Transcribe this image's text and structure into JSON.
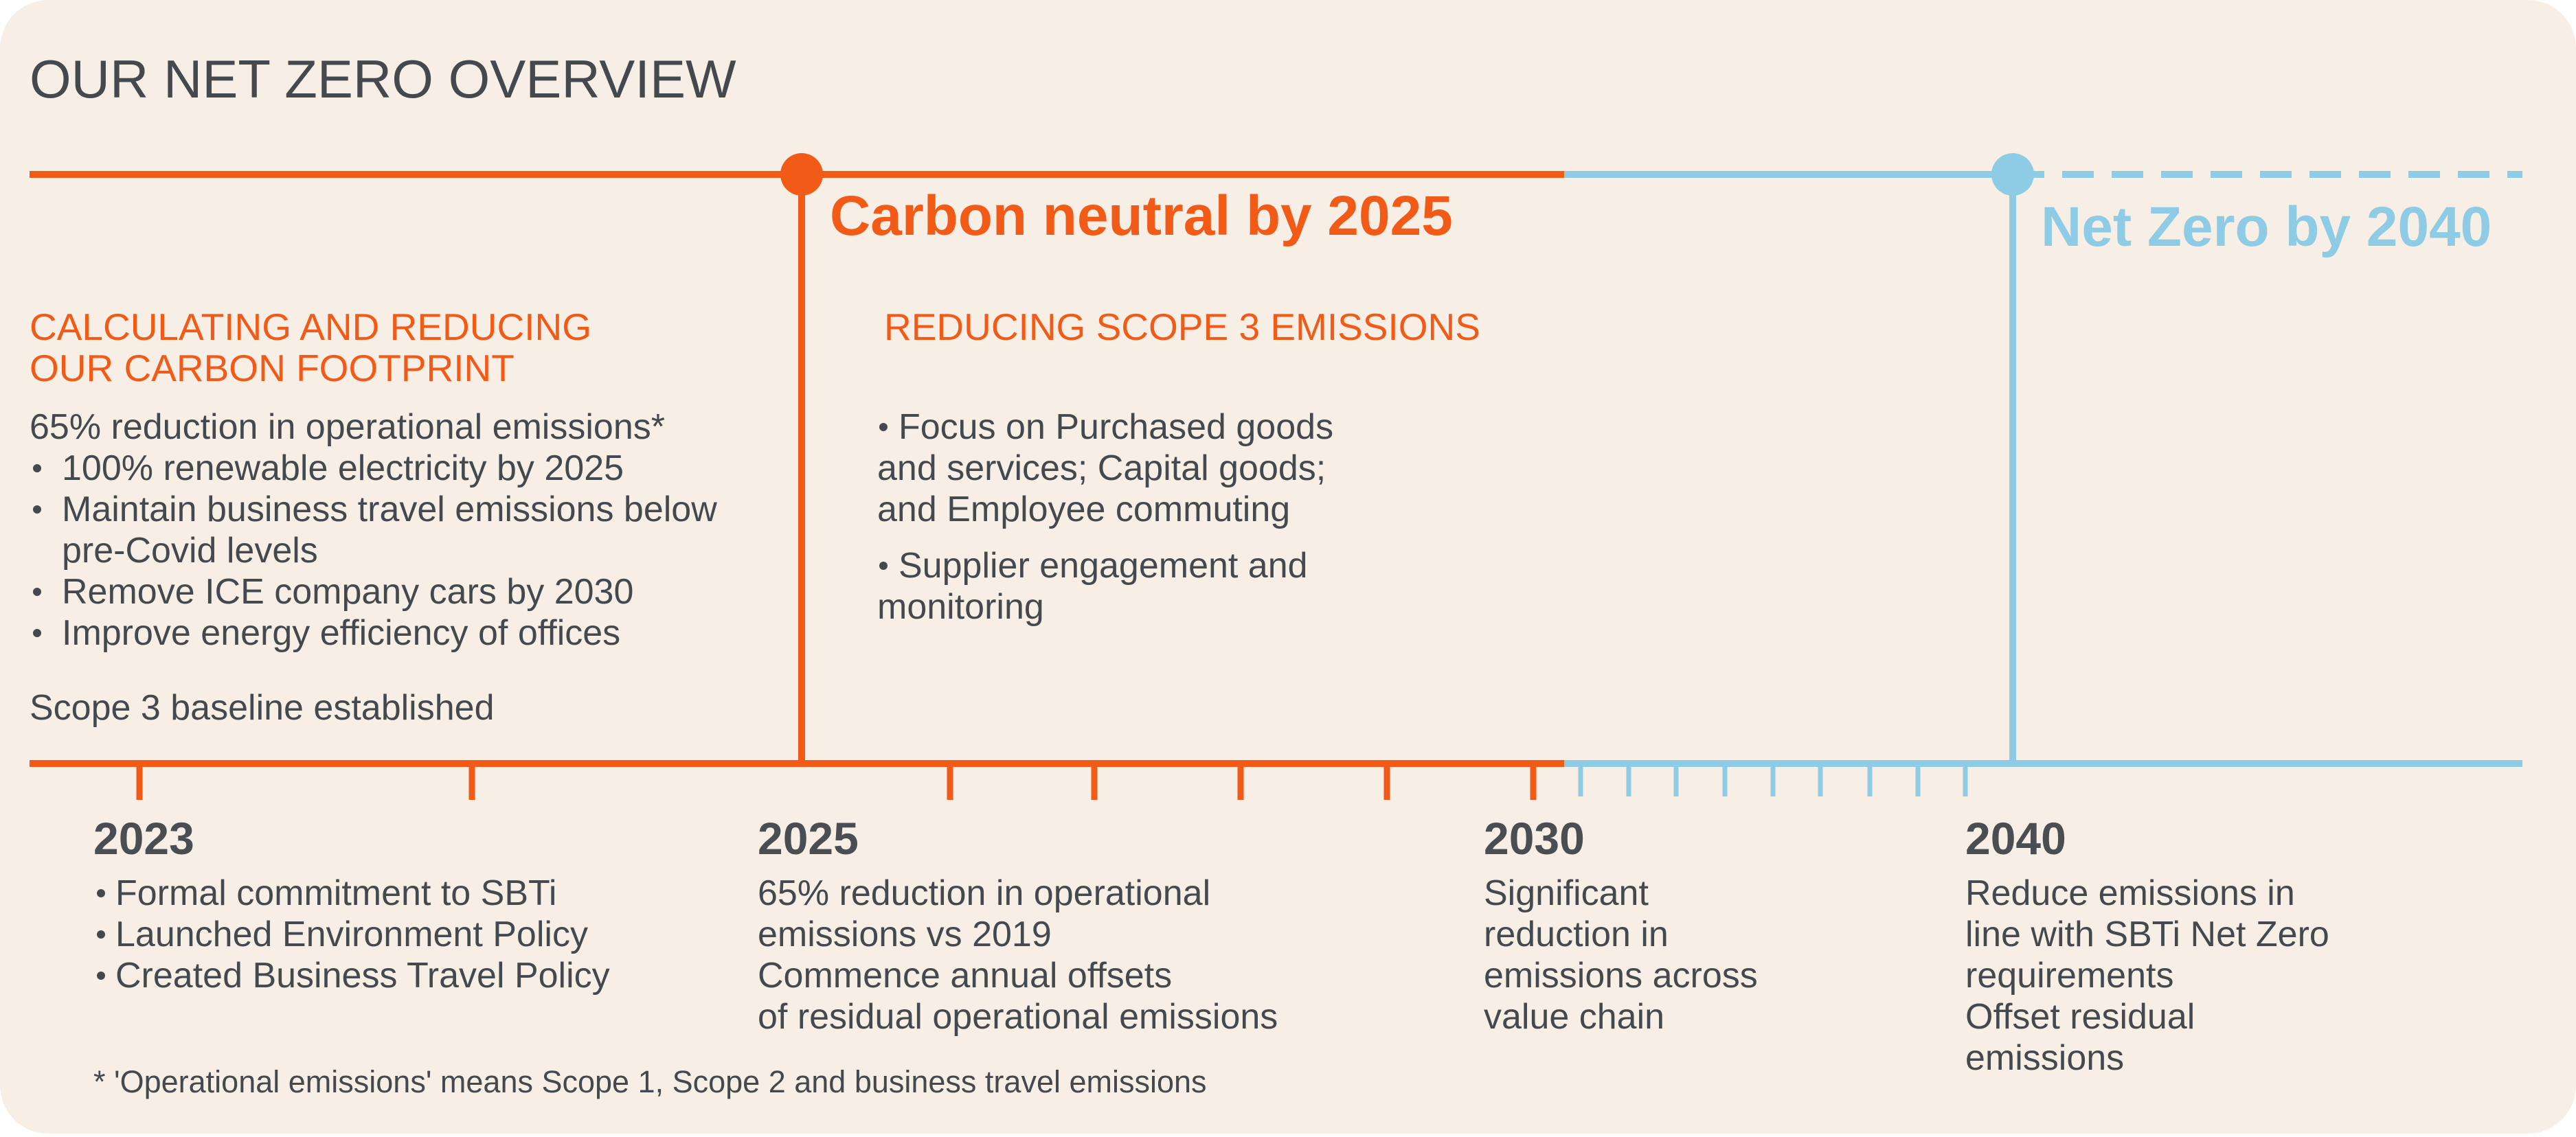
{
  "header": {
    "title": "OUR NET ZERO OVERVIEW"
  },
  "milestones": [
    {
      "label": "Carbon neutral by 2025"
    },
    {
      "label": "Net Zero by 2040"
    }
  ],
  "panels": [
    {
      "heading": [
        "CALCULATING AND REDUCING",
        "OUR CARBON FOOTPRINT"
      ],
      "intro": "65% reduction in operational emissions*",
      "bullets": [
        [
          "100% renewable electricity by 2025"
        ],
        [
          "Maintain business travel emissions below",
          "pre-Covid levels"
        ],
        [
          "Remove ICE company cars by 2030"
        ],
        [
          "Improve energy efficiency of offices"
        ]
      ],
      "note": "Scope 3 baseline established"
    },
    {
      "heading": [
        "REDUCING SCOPE 3 EMISSIONS"
      ],
      "bullets": [
        [
          "Focus on Purchased goods",
          "and services; Capital goods;",
          "and Employee commuting"
        ],
        [
          "Supplier engagement and",
          "monitoring"
        ]
      ]
    }
  ],
  "timeline": [
    {
      "year": "2023",
      "bullets": [
        "Formal commitment to SBTi",
        "Launched Environment Policy",
        "Created Business Travel Policy"
      ]
    },
    {
      "year": "2025",
      "lines": [
        "65% reduction in operational",
        "emissions vs 2019",
        "Commence annual offsets",
        "of residual operational emissions"
      ]
    },
    {
      "year": "2030",
      "lines": [
        "Significant",
        "reduction in",
        "emissions across",
        "value chain"
      ]
    },
    {
      "year": "2040",
      "lines": [
        "Reduce emissions in",
        "line with SBTi Net Zero",
        "requirements",
        "Offset residual",
        "emissions"
      ]
    }
  ],
  "footnote": "* 'Operational emissions' means Scope 1, Scope 2 and business travel emissions"
}
